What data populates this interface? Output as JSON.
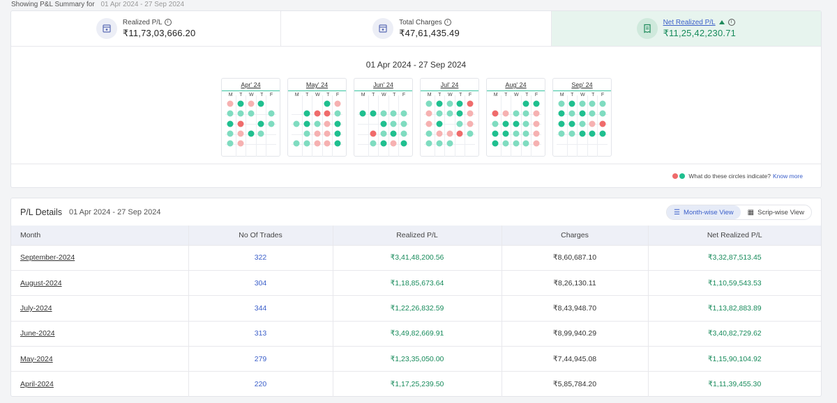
{
  "header": {
    "label": "Showing P&L Summary for",
    "range": "01 Apr 2024 - 27 Sep 2024"
  },
  "summary": [
    {
      "label": "Realized P/L",
      "value": "₹11,73,03,666.20",
      "icon": "bank-icon"
    },
    {
      "label": "Total Charges",
      "value": "₹47,61,435.49",
      "icon": "bank-icon"
    },
    {
      "label": "Net Realized P/L",
      "value": "₹11,25,42,230.71",
      "icon": "receipt-icon",
      "trend": "up"
    }
  ],
  "calendar": {
    "title": "01 Apr 2024 - 27 Sep 2024",
    "weekdays": [
      "M",
      "T",
      "W",
      "T",
      "F"
    ],
    "months": [
      {
        "label": "Apr' 24",
        "weeks": [
          [
            "lr",
            "dg",
            "lr",
            "dg",
            ""
          ],
          [
            "lg",
            "lg",
            "lg",
            "",
            "lg"
          ],
          [
            "dg",
            "dr",
            "",
            "dg",
            "lg"
          ],
          [
            "lg",
            "lr",
            "dg",
            "lg",
            ""
          ],
          [
            "lg",
            "lr",
            "",
            "",
            ""
          ]
        ]
      },
      {
        "label": "May' 24",
        "weeks": [
          [
            "",
            "",
            "",
            "dg",
            "lr"
          ],
          [
            "",
            "dg",
            "dr",
            "dr",
            "lg"
          ],
          [
            "lg",
            "dg",
            "lg",
            "lr",
            "dg"
          ],
          [
            "",
            "lg",
            "lr",
            "lr",
            "dg"
          ],
          [
            "lg",
            "lg",
            "lr",
            "lr",
            "dg"
          ]
        ]
      },
      {
        "label": "Jun' 24",
        "weeks": [
          [
            "",
            "",
            "",
            "",
            ""
          ],
          [
            "dg",
            "dg",
            "lg",
            "lg",
            "lg"
          ],
          [
            "",
            "",
            "dg",
            "lg",
            "lg"
          ],
          [
            "",
            "dr",
            "lg",
            "dg",
            "lg"
          ],
          [
            "",
            "lg",
            "dg",
            "lr",
            "dg"
          ]
        ]
      },
      {
        "label": "Jul' 24",
        "weeks": [
          [
            "lg",
            "dg",
            "lg",
            "dg",
            "dr"
          ],
          [
            "lr",
            "lg",
            "lg",
            "dg",
            "lr"
          ],
          [
            "lr",
            "dg",
            "",
            "lg",
            "lr"
          ],
          [
            "lg",
            "lr",
            "lr",
            "dr",
            "lg"
          ],
          [
            "lg",
            "lg",
            "lg",
            "",
            ""
          ]
        ]
      },
      {
        "label": "Aug' 24",
        "weeks": [
          [
            "",
            "",
            "",
            "dg",
            "dg"
          ],
          [
            "dr",
            "lr",
            "lg",
            "lg",
            "lr"
          ],
          [
            "lg",
            "dg",
            "dg",
            "lg",
            "lr"
          ],
          [
            "dg",
            "dg",
            "lg",
            "lg",
            "lr"
          ],
          [
            "dg",
            "lg",
            "lg",
            "lg",
            "lr"
          ]
        ]
      },
      {
        "label": "Sep' 24",
        "weeks": [
          [
            "lg",
            "dg",
            "lg",
            "lg",
            "lg"
          ],
          [
            "dg",
            "lg",
            "dg",
            "lg",
            "lg"
          ],
          [
            "dg",
            "dg",
            "lg",
            "lr",
            "dr"
          ],
          [
            "lg",
            "lg",
            "dg",
            "dg",
            "dg"
          ],
          [
            "",
            "",
            "",
            "",
            ""
          ]
        ]
      }
    ],
    "colors": {
      "dg": "#1fbf8f",
      "lg": "#7fdcc0",
      "dr": "#ef6b6b",
      "lr": "#f6b1b1"
    },
    "legend_text": "What do these circles indicate?",
    "legend_link": "Know more"
  },
  "details": {
    "title": "P/L Details",
    "range": "01 Apr 2024 - 27 Sep 2024",
    "toggle": [
      "Month-wise View",
      "Scrip-wise View"
    ],
    "columns": [
      "Month",
      "No Of Trades",
      "Realized P/L",
      "Charges",
      "Net Realized P/L"
    ],
    "rows": [
      [
        "September-2024",
        "322",
        "₹3,41,48,200.56",
        "₹8,60,687.10",
        "₹3,32,87,513.45"
      ],
      [
        "August-2024",
        "304",
        "₹1,18,85,673.64",
        "₹8,26,130.11",
        "₹1,10,59,543.53"
      ],
      [
        "July-2024",
        "344",
        "₹1,22,26,832.59",
        "₹8,43,948.70",
        "₹1,13,82,883.89"
      ],
      [
        "June-2024",
        "313",
        "₹3,49,82,669.91",
        "₹8,99,940.29",
        "₹3,40,82,729.62"
      ],
      [
        "May-2024",
        "279",
        "₹1,23,35,050.00",
        "₹7,44,945.08",
        "₹1,15,90,104.92"
      ],
      [
        "April-2024",
        "220",
        "₹1,17,25,239.50",
        "₹5,85,784.20",
        "₹1,11,39,455.30"
      ]
    ]
  }
}
